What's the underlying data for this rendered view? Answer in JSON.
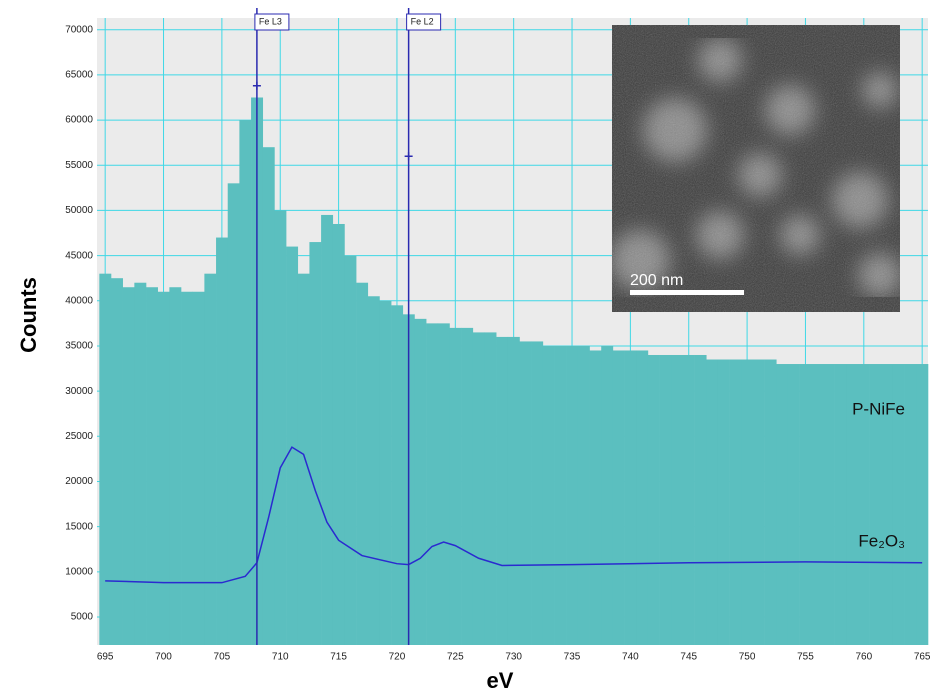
{
  "chart_data": {
    "type": "histogram",
    "x_label": "eV",
    "y_label": "Counts",
    "bins": [
      694.5,
      695.5,
      696.5,
      697.5,
      698.5,
      699.5,
      700.5,
      701.5,
      702.5,
      703.5,
      704.5,
      705.5,
      706.5,
      707.5,
      708.5,
      709.5,
      710.5,
      711.5,
      712.5,
      713.5,
      714.5,
      715.5,
      716.5,
      717.5,
      718.5,
      719.5,
      720.5,
      721.5,
      722.5,
      723.5,
      724.5,
      725.5,
      726.5,
      727.5,
      728.5,
      729.5,
      730.5,
      731.5,
      732.5,
      733.5,
      734.5,
      735.5,
      736.5,
      737.5,
      738.5,
      739.5,
      740.5,
      741.5,
      742.5,
      743.5,
      744.5,
      745.5,
      746.5,
      747.5,
      748.5,
      749.5,
      750.5,
      751.5,
      752.5,
      753.5,
      754.5,
      755.5,
      756.5,
      757.5,
      758.5,
      759.5,
      760.5,
      761.5,
      762.5,
      763.5,
      764.5,
      765.5
    ],
    "series": [
      {
        "name": "P-NiFe",
        "color": "#5bbfbf",
        "values": [
          43000,
          42500,
          41500,
          42000,
          41500,
          41000,
          41500,
          41000,
          41000,
          43000,
          47000,
          53000,
          60000,
          62500,
          57000,
          50000,
          46000,
          43000,
          46500,
          49500,
          48500,
          45000,
          42000,
          40500,
          40000,
          39500,
          38500,
          38000,
          37500,
          37500,
          37000,
          37000,
          36500,
          36500,
          36000,
          36000,
          35500,
          35500,
          35000,
          35000,
          35000,
          35000,
          34500,
          35000,
          34500,
          34500,
          34500,
          34000,
          34000,
          34000,
          34000,
          34000,
          33500,
          33500,
          33500,
          33500,
          33500,
          33500,
          33000,
          33000,
          33000,
          33000,
          33000,
          33000,
          33000,
          33000,
          33000,
          33000,
          33000,
          33000,
          33000
        ]
      },
      {
        "name": "Fe₂O₃",
        "color": "#2a2ad0",
        "type": "line",
        "x": [
          695,
          700,
          705,
          707,
          708,
          709,
          710,
          711,
          712,
          713,
          714,
          715,
          717,
          720,
          721,
          722,
          723,
          724,
          725,
          727,
          729,
          735,
          745,
          755,
          765
        ],
        "values": [
          9000,
          8800,
          8800,
          9500,
          11000,
          16000,
          21500,
          23800,
          23000,
          19000,
          15500,
          13500,
          11800,
          10900,
          10800,
          11500,
          12800,
          13300,
          12900,
          11500,
          10700,
          10800,
          11000,
          11100,
          11000
        ]
      }
    ],
    "markers": [
      {
        "label": "Fe L3",
        "x": 708,
        "y": 63800
      },
      {
        "label": "Fe L2",
        "x": 721,
        "y": 56000
      }
    ],
    "inset_scale_label": "200 nm",
    "xlim": [
      694.3,
      765.5
    ],
    "ylim": [
      1900,
      71300
    ],
    "xticks": [
      695,
      700,
      705,
      710,
      715,
      720,
      725,
      730,
      735,
      740,
      745,
      750,
      755,
      760,
      765
    ],
    "yticks": [
      5000,
      10000,
      15000,
      20000,
      25000,
      30000,
      35000,
      40000,
      45000,
      50000,
      55000,
      60000,
      65000,
      70000
    ],
    "grid": true
  }
}
